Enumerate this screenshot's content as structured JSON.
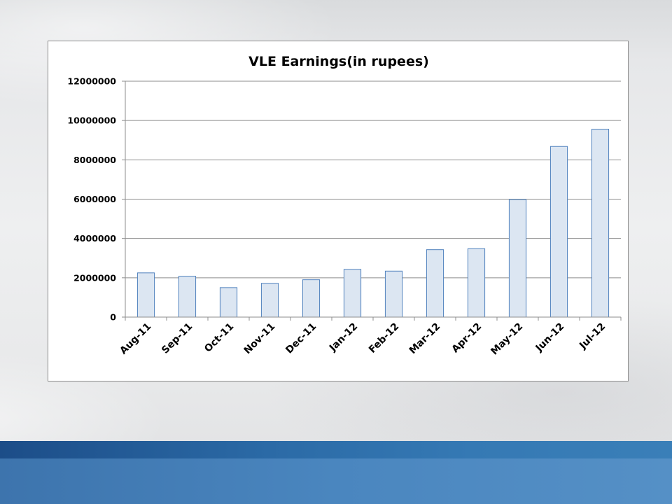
{
  "chart_data": {
    "type": "bar",
    "title": "VLE Earnings(in rupees)",
    "xlabel": "",
    "ylabel": "",
    "categories": [
      "Aug-11",
      "Sep-11",
      "Oct-11",
      "Nov-11",
      "Dec-11",
      "Jan-12",
      "Feb-12",
      "Mar-12",
      "Apr-12",
      "May-12",
      "Jun-12",
      "Jul-12"
    ],
    "values": [
      2250000,
      2080000,
      1500000,
      1720000,
      1900000,
      2430000,
      2340000,
      3430000,
      3480000,
      5980000,
      8680000,
      9560000
    ],
    "ylim": [
      0,
      12000000
    ],
    "yticks": [
      0,
      2000000,
      4000000,
      6000000,
      8000000,
      10000000,
      12000000
    ],
    "grid": true,
    "legend": "none",
    "bar_fill": "#dce6f2",
    "bar_stroke": "#4f81bd"
  }
}
